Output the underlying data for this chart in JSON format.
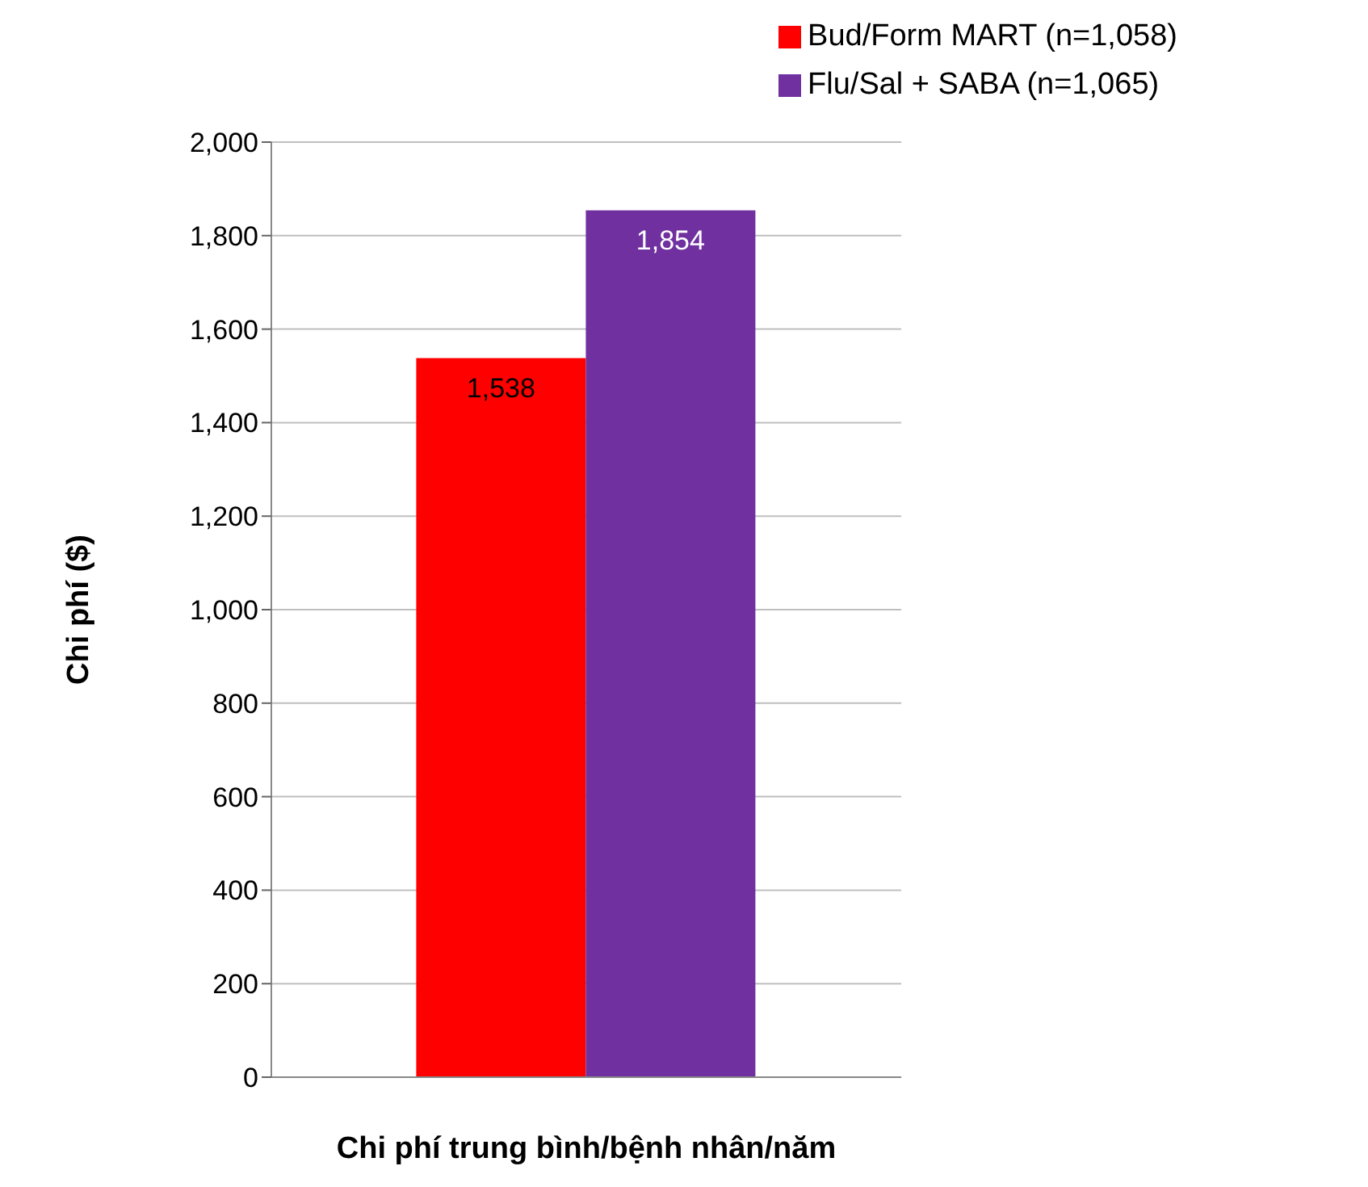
{
  "chart_data": {
    "type": "bar",
    "xlabel": "Chi phí trung bình/bệnh nhân/năm",
    "ylabel": "Chi phí ($)",
    "categories": [
      null
    ],
    "series": [
      {
        "name": "Bud/Form  MART (n=1,058)",
        "color": "#ff0000",
        "values": [
          1538
        ],
        "value_labels": [
          "1,538"
        ]
      },
      {
        "name": "Flu/Sal  + SABA (n=1,065)",
        "color": "#7030a0",
        "values": [
          1854
        ],
        "value_labels": [
          "1,854"
        ]
      }
    ],
    "ylim": [
      0,
      2000
    ],
    "yticks": [
      0,
      {
        "value": 200,
        "label": "200"
      },
      {
        "value": 400,
        "label": "400"
      },
      {
        "value": 600,
        "label": "600"
      },
      {
        "value": 800,
        "label": "800"
      },
      {
        "value": 1000,
        "label": "1,000"
      },
      {
        "value": 1200,
        "label": "1,200"
      },
      {
        "value": 1400,
        "label": "1,400"
      },
      {
        "value": 1600,
        "label": "1,600"
      },
      {
        "value": 1800,
        "label": "1,800"
      },
      {
        "value": 2000,
        "label": "2,000"
      }
    ],
    "grid": "y",
    "legend": "top right"
  }
}
